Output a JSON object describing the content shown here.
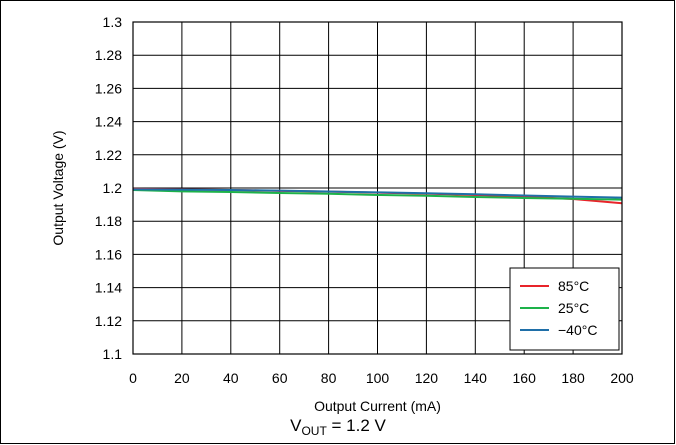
{
  "chart_data": {
    "type": "line",
    "xlabel": "Output Current (mA)",
    "ylabel": "Output Voltage (V)",
    "xlim": [
      0,
      200
    ],
    "ylim": [
      1.1,
      1.3
    ],
    "xticks": [
      0,
      20,
      40,
      60,
      80,
      100,
      120,
      140,
      160,
      180,
      200
    ],
    "yticks": [
      1.1,
      1.12,
      1.14,
      1.16,
      1.18,
      1.2,
      1.22,
      1.24,
      1.26,
      1.28,
      1.3
    ],
    "xtick_labels": [
      "0",
      "20",
      "40",
      "60",
      "80",
      "100",
      "120",
      "140",
      "160",
      "180",
      "200"
    ],
    "ytick_labels": [
      "1.1",
      "1.12",
      "1.14",
      "1.16",
      "1.18",
      "1.2",
      "1.22",
      "1.24",
      "1.26",
      "1.28",
      "1.3"
    ],
    "grid": true,
    "legend_position": "bottom-right",
    "x": [
      0,
      20,
      40,
      60,
      80,
      100,
      120,
      140,
      160,
      180,
      200
    ],
    "series": [
      {
        "name": "85°C",
        "color": "#e8242a",
        "values": [
          1.1995,
          1.1992,
          1.1988,
          1.1983,
          1.1978,
          1.1972,
          1.1966,
          1.1958,
          1.1948,
          1.1934,
          1.1908
        ]
      },
      {
        "name": "25°C",
        "color": "#1db24a",
        "values": [
          1.1988,
          1.198,
          1.1976,
          1.197,
          1.1965,
          1.1958,
          1.1953,
          1.1946,
          1.194,
          1.1935,
          1.193
        ]
      },
      {
        "name": "−40°C",
        "color": "#1f6fa8",
        "values": [
          1.1992,
          1.199,
          1.1988,
          1.1984,
          1.1979,
          1.1974,
          1.1968,
          1.1962,
          1.1955,
          1.1948,
          1.1942
        ]
      }
    ],
    "caption": {
      "main": "V",
      "subscript": "OUT",
      "rest": " = 1.2 V"
    }
  }
}
